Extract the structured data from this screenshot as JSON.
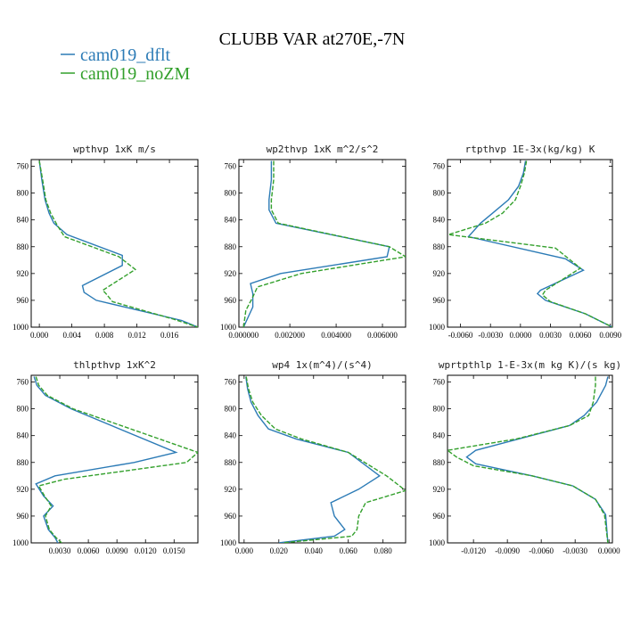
{
  "chart_data": {
    "title": "CLUBB VAR at270E,-7N",
    "legend": [
      {
        "label": "cam019_dflt",
        "color": "#2c7bb6"
      },
      {
        "label": "cam019_noZM",
        "color": "#33a02c"
      }
    ],
    "panels": [
      {
        "type": "line",
        "title": "wpthvp   1xK m/s",
        "xlim": [
          -0.001,
          0.0195
        ],
        "ylim": [
          1000,
          750
        ],
        "xticks": [
          "0.000",
          "0.004",
          "0.008",
          "0.012",
          "0.016"
        ],
        "xtick_values": [
          0,
          0.004,
          0.008,
          0.012,
          0.016
        ],
        "yticks": [
          760,
          800,
          840,
          880,
          920,
          960,
          1000
        ],
        "series": [
          {
            "name": "cam019_dflt",
            "x": [
              0.0,
              0.0003,
              0.0007,
              0.0012,
              0.0018,
              0.0034,
              0.0102,
              0.0102,
              0.0053,
              0.0055,
              0.007,
              0.0175,
              0.0195
            ],
            "y": [
              752,
              780,
              810,
              830,
              845,
              862,
              893,
              908,
              938,
              948,
              960,
              990,
              1000
            ]
          },
          {
            "name": "cam019_noZM",
            "x": [
              0.0,
              0.0004,
              0.0008,
              0.0014,
              0.0022,
              0.0031,
              0.0098,
              0.0118,
              0.0078,
              0.0082,
              0.009,
              0.0165,
              0.0195
            ],
            "y": [
              752,
              780,
              810,
              830,
              848,
              865,
              895,
              914,
              945,
              950,
              962,
              988,
              1000
            ]
          }
        ]
      },
      {
        "type": "line",
        "title": "wp2thvp   1xK m^2/s^2",
        "xlim": [
          -0.0002,
          0.007
        ],
        "ylim": [
          1000,
          750
        ],
        "xticks": [
          "0.000000",
          "0.002000",
          "0.004000",
          "0.006000"
        ],
        "xtick_values": [
          0,
          0.002,
          0.004,
          0.006
        ],
        "yticks": [
          760,
          800,
          840,
          880,
          920,
          960,
          1000
        ],
        "series": [
          {
            "name": "cam019_dflt",
            "x": [
              0.0012,
              0.0012,
              0.0011,
              0.0011,
              0.0014,
              0.0063,
              0.0062,
              0.0016,
              0.0003,
              0.0004,
              0.0004,
              0.0
            ],
            "y": [
              752,
              780,
              810,
              825,
              845,
              880,
              895,
              920,
              935,
              950,
              970,
              1000
            ]
          },
          {
            "name": "cam019_noZM",
            "x": [
              0.0013,
              0.0013,
              0.0012,
              0.0012,
              0.0015,
              0.0063,
              0.007,
              0.0025,
              0.0006,
              0.0004,
              0.0001,
              0.0
            ],
            "y": [
              752,
              780,
              810,
              825,
              845,
              880,
              895,
              920,
              940,
              955,
              975,
              1000
            ]
          }
        ]
      },
      {
        "type": "line",
        "title": "rtpthvp   1E-3x(kg/kg) K",
        "xlim": [
          -0.0073,
          0.0092
        ],
        "ylim": [
          1000,
          750
        ],
        "xticks": [
          "-0.0060",
          "-0.0030",
          "0.0000",
          "0.0030",
          "0.0060",
          "0.0090"
        ],
        "xtick_values": [
          -0.006,
          -0.003,
          0,
          0.003,
          0.006,
          0.009
        ],
        "yticks": [
          760,
          800,
          840,
          880,
          920,
          960,
          1000
        ],
        "series": [
          {
            "name": "cam019_dflt",
            "x": [
              0.0005,
              0.0003,
              -0.0002,
              -0.0012,
              -0.0028,
              -0.004,
              -0.0052,
              0.0045,
              0.0063,
              0.002,
              0.0017,
              0.0025,
              0.0065,
              0.0092
            ],
            "y": [
              752,
              770,
              790,
              810,
              830,
              845,
              865,
              898,
              915,
              945,
              950,
              960,
              980,
              1000
            ]
          },
          {
            "name": "cam019_noZM",
            "x": [
              0.0006,
              0.0004,
              0.0,
              -0.0005,
              -0.0018,
              -0.0035,
              -0.0072,
              0.0035,
              0.006,
              0.0025,
              0.0022,
              0.003,
              0.0065,
              0.0092
            ],
            "y": [
              752,
              770,
              790,
              810,
              830,
              845,
              862,
              882,
              912,
              945,
              952,
              962,
              980,
              1000
            ]
          }
        ]
      },
      {
        "type": "line",
        "title": "thlpthvp   1xK^2",
        "xlim": [
          0.0,
          0.0175
        ],
        "ylim": [
          1000,
          750
        ],
        "xticks": [
          "0.0030",
          "0.0060",
          "0.0090",
          "0.0120",
          "0.0150"
        ],
        "xtick_values": [
          0.003,
          0.006,
          0.009,
          0.012,
          0.015
        ],
        "yticks": [
          760,
          800,
          840,
          880,
          920,
          960,
          1000
        ],
        "series": [
          {
            "name": "cam019_dflt",
            "x": [
              0.0003,
              0.0006,
              0.0015,
              0.0042,
              0.0152,
              0.0108,
              0.0025,
              0.0005,
              0.0013,
              0.0023,
              0.0013,
              0.0018,
              0.0025,
              0.0028
            ],
            "y": [
              752,
              765,
              780,
              800,
              865,
              880,
              900,
              912,
              930,
              945,
              960,
              980,
              992,
              1000
            ]
          },
          {
            "name": "cam019_noZM",
            "x": [
              0.0005,
              0.0008,
              0.0017,
              0.0044,
              0.0175,
              0.0163,
              0.0035,
              0.0008,
              0.0014,
              0.0021,
              0.0015,
              0.0019,
              0.0026,
              0.0032
            ],
            "y": [
              752,
              765,
              780,
              800,
              865,
              880,
              905,
              915,
              930,
              945,
              960,
              980,
              992,
              1000
            ]
          }
        ]
      },
      {
        "type": "line",
        "title": "wp4   1x(m^4)/(s^4)",
        "xlim": [
          -0.003,
          0.093
        ],
        "ylim": [
          1000,
          750
        ],
        "xticks": [
          "0.000",
          "0.020",
          "0.040",
          "0.060",
          "0.080"
        ],
        "xtick_values": [
          0,
          0.02,
          0.04,
          0.06,
          0.08
        ],
        "yticks": [
          760,
          800,
          840,
          880,
          920,
          960,
          1000
        ],
        "series": [
          {
            "name": "cam019_dflt",
            "x": [
              0.001,
              0.002,
              0.004,
              0.008,
              0.014,
              0.03,
              0.06,
              0.078,
              0.066,
              0.05,
              0.052,
              0.058,
              0.052,
              0.02
            ],
            "y": [
              752,
              770,
              790,
              810,
              830,
              845,
              865,
              900,
              920,
              940,
              960,
              980,
              990,
              1000
            ]
          },
          {
            "name": "cam019_noZM",
            "x": [
              0.0012,
              0.0025,
              0.005,
              0.01,
              0.018,
              0.033,
              0.06,
              0.082,
              0.093,
              0.07,
              0.066,
              0.065,
              0.062,
              0.022
            ],
            "y": [
              752,
              770,
              790,
              810,
              830,
              845,
              865,
              900,
              922,
              940,
              960,
              980,
              990,
              1000
            ]
          }
        ]
      },
      {
        "type": "line",
        "title": "wprtpthlp   1-E-3x(m kg K)/(s kg)",
        "xlim": [
          -0.0143,
          0.0003
        ],
        "ylim": [
          1000,
          750
        ],
        "xticks": [
          "-0.0120",
          "-0.0090",
          "-0.0060",
          "-0.0030",
          "0.0000"
        ],
        "xtick_values": [
          -0.012,
          -0.009,
          -0.006,
          -0.003,
          0
        ],
        "yticks": [
          760,
          800,
          840,
          880,
          920,
          960,
          1000
        ],
        "series": [
          {
            "name": "cam019_dflt",
            "x": [
              -0.0001,
              -0.0003,
              -0.0011,
              -0.0022,
              -0.0035,
              -0.008,
              -0.0118,
              -0.0126,
              -0.0118,
              -0.0068,
              -0.0032,
              -0.0012,
              -0.0003,
              -0.0001
            ],
            "y": [
              752,
              765,
              790,
              810,
              825,
              845,
              862,
              872,
              882,
              900,
              915,
              935,
              958,
              1000
            ]
          },
          {
            "name": "cam019_noZM",
            "x": [
              -0.0012,
              -0.0012,
              -0.0014,
              -0.0018,
              -0.0035,
              -0.0082,
              -0.0143,
              -0.0135,
              -0.012,
              -0.0068,
              -0.0032,
              -0.0012,
              -0.0004,
              -0.0001
            ],
            "y": [
              752,
              765,
              790,
              810,
              825,
              845,
              862,
              872,
              885,
              900,
              915,
              935,
              958,
              1000
            ]
          }
        ]
      }
    ]
  }
}
